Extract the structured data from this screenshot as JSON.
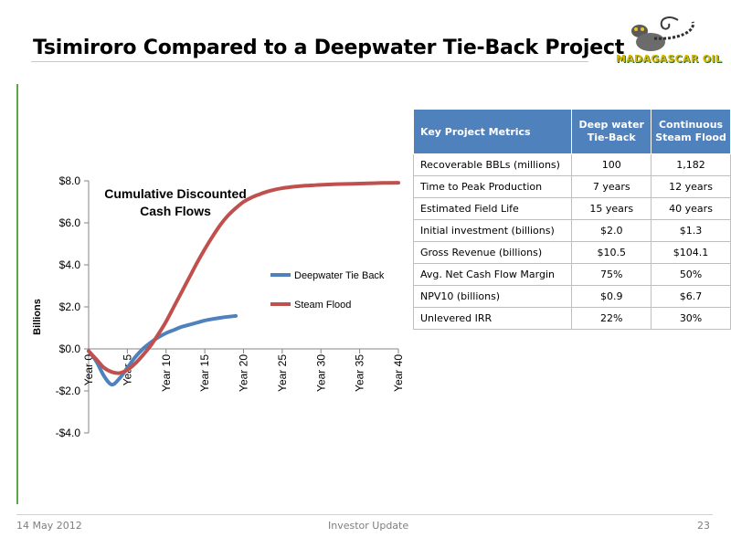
{
  "slide": {
    "title": "Tsimiroro Compared to a Deepwater Tie-Back Project",
    "logo_text": "MADAGASCAR OIL",
    "footer_date": "14 May 2012",
    "footer_center": "Investor Update",
    "page_number": "23"
  },
  "colors": {
    "accent_green": "#5aa64a",
    "table_header": "#4f81bd",
    "series_blue": "#4f81bd",
    "series_red": "#c0504d"
  },
  "chart_data": {
    "type": "line",
    "title": "Cumulative Discounted Cash Flows",
    "title_lines": [
      "Cumulative Discounted",
      "Cash Flows"
    ],
    "xlabel": "",
    "ylabel": "Billions",
    "x_tick_labels": [
      "Year 0",
      "Year 5",
      "Year 10",
      "Year 15",
      "Year 20",
      "Year 25",
      "Year 30",
      "Year 35",
      "Year 40"
    ],
    "x_ticks": [
      0,
      5,
      10,
      15,
      20,
      25,
      30,
      35,
      40
    ],
    "y_tick_labels": [
      "$8.0",
      "$6.0",
      "$4.0",
      "$2.0",
      "$0.0",
      "-$2.0",
      "-$4.0"
    ],
    "y_ticks": [
      8,
      6,
      4,
      2,
      0,
      -2,
      -4
    ],
    "xlim": [
      0,
      40
    ],
    "ylim": [
      -4,
      8
    ],
    "grid": false,
    "legend_position": "right",
    "series": [
      {
        "name": "Deepwater Tie Back",
        "color": "#4f81bd",
        "x": [
          0,
          1,
          2,
          3,
          4,
          5,
          6,
          7,
          8,
          9,
          10,
          11,
          12,
          13,
          14,
          15,
          16,
          17,
          18,
          19
        ],
        "y": [
          -0.1,
          -0.6,
          -1.3,
          -1.7,
          -1.4,
          -0.9,
          -0.4,
          0.0,
          0.3,
          0.55,
          0.75,
          0.9,
          1.05,
          1.15,
          1.25,
          1.35,
          1.42,
          1.48,
          1.53,
          1.57
        ]
      },
      {
        "name": "Steam Flood",
        "color": "#c0504d",
        "x": [
          0,
          1,
          2,
          3,
          4,
          5,
          6,
          7,
          8,
          9,
          10,
          11,
          12,
          13,
          14,
          15,
          16,
          17,
          18,
          19,
          20,
          21,
          22,
          23,
          24,
          25,
          26,
          27,
          28,
          29,
          30,
          32,
          34,
          36,
          38,
          40
        ],
        "y": [
          -0.1,
          -0.5,
          -0.9,
          -1.1,
          -1.15,
          -1.0,
          -0.7,
          -0.3,
          0.15,
          0.7,
          1.3,
          2.0,
          2.7,
          3.4,
          4.1,
          4.75,
          5.35,
          5.9,
          6.35,
          6.7,
          7.0,
          7.2,
          7.35,
          7.48,
          7.58,
          7.65,
          7.7,
          7.74,
          7.77,
          7.79,
          7.81,
          7.84,
          7.86,
          7.88,
          7.9,
          7.91
        ]
      }
    ]
  },
  "metrics_table": {
    "headers": [
      "Key Project Metrics",
      "Deep water Tie-Back",
      "Continuous Steam Flood"
    ],
    "rows": [
      [
        "Recoverable BBLs (millions)",
        "100",
        "1,182"
      ],
      [
        "Time to Peak Production",
        "7 years",
        "12 years"
      ],
      [
        "Estimated Field Life",
        "15 years",
        "40 years"
      ],
      [
        "Initial investment (billions)",
        "$2.0",
        "$1.3"
      ],
      [
        "Gross Revenue (billions)",
        "$10.5",
        "$104.1"
      ],
      [
        "Avg. Net Cash Flow Margin",
        "75%",
        "50%"
      ],
      [
        "NPV10 (billions)",
        "$0.9",
        "$6.7"
      ],
      [
        "Unlevered IRR",
        "22%",
        "30%"
      ]
    ]
  }
}
